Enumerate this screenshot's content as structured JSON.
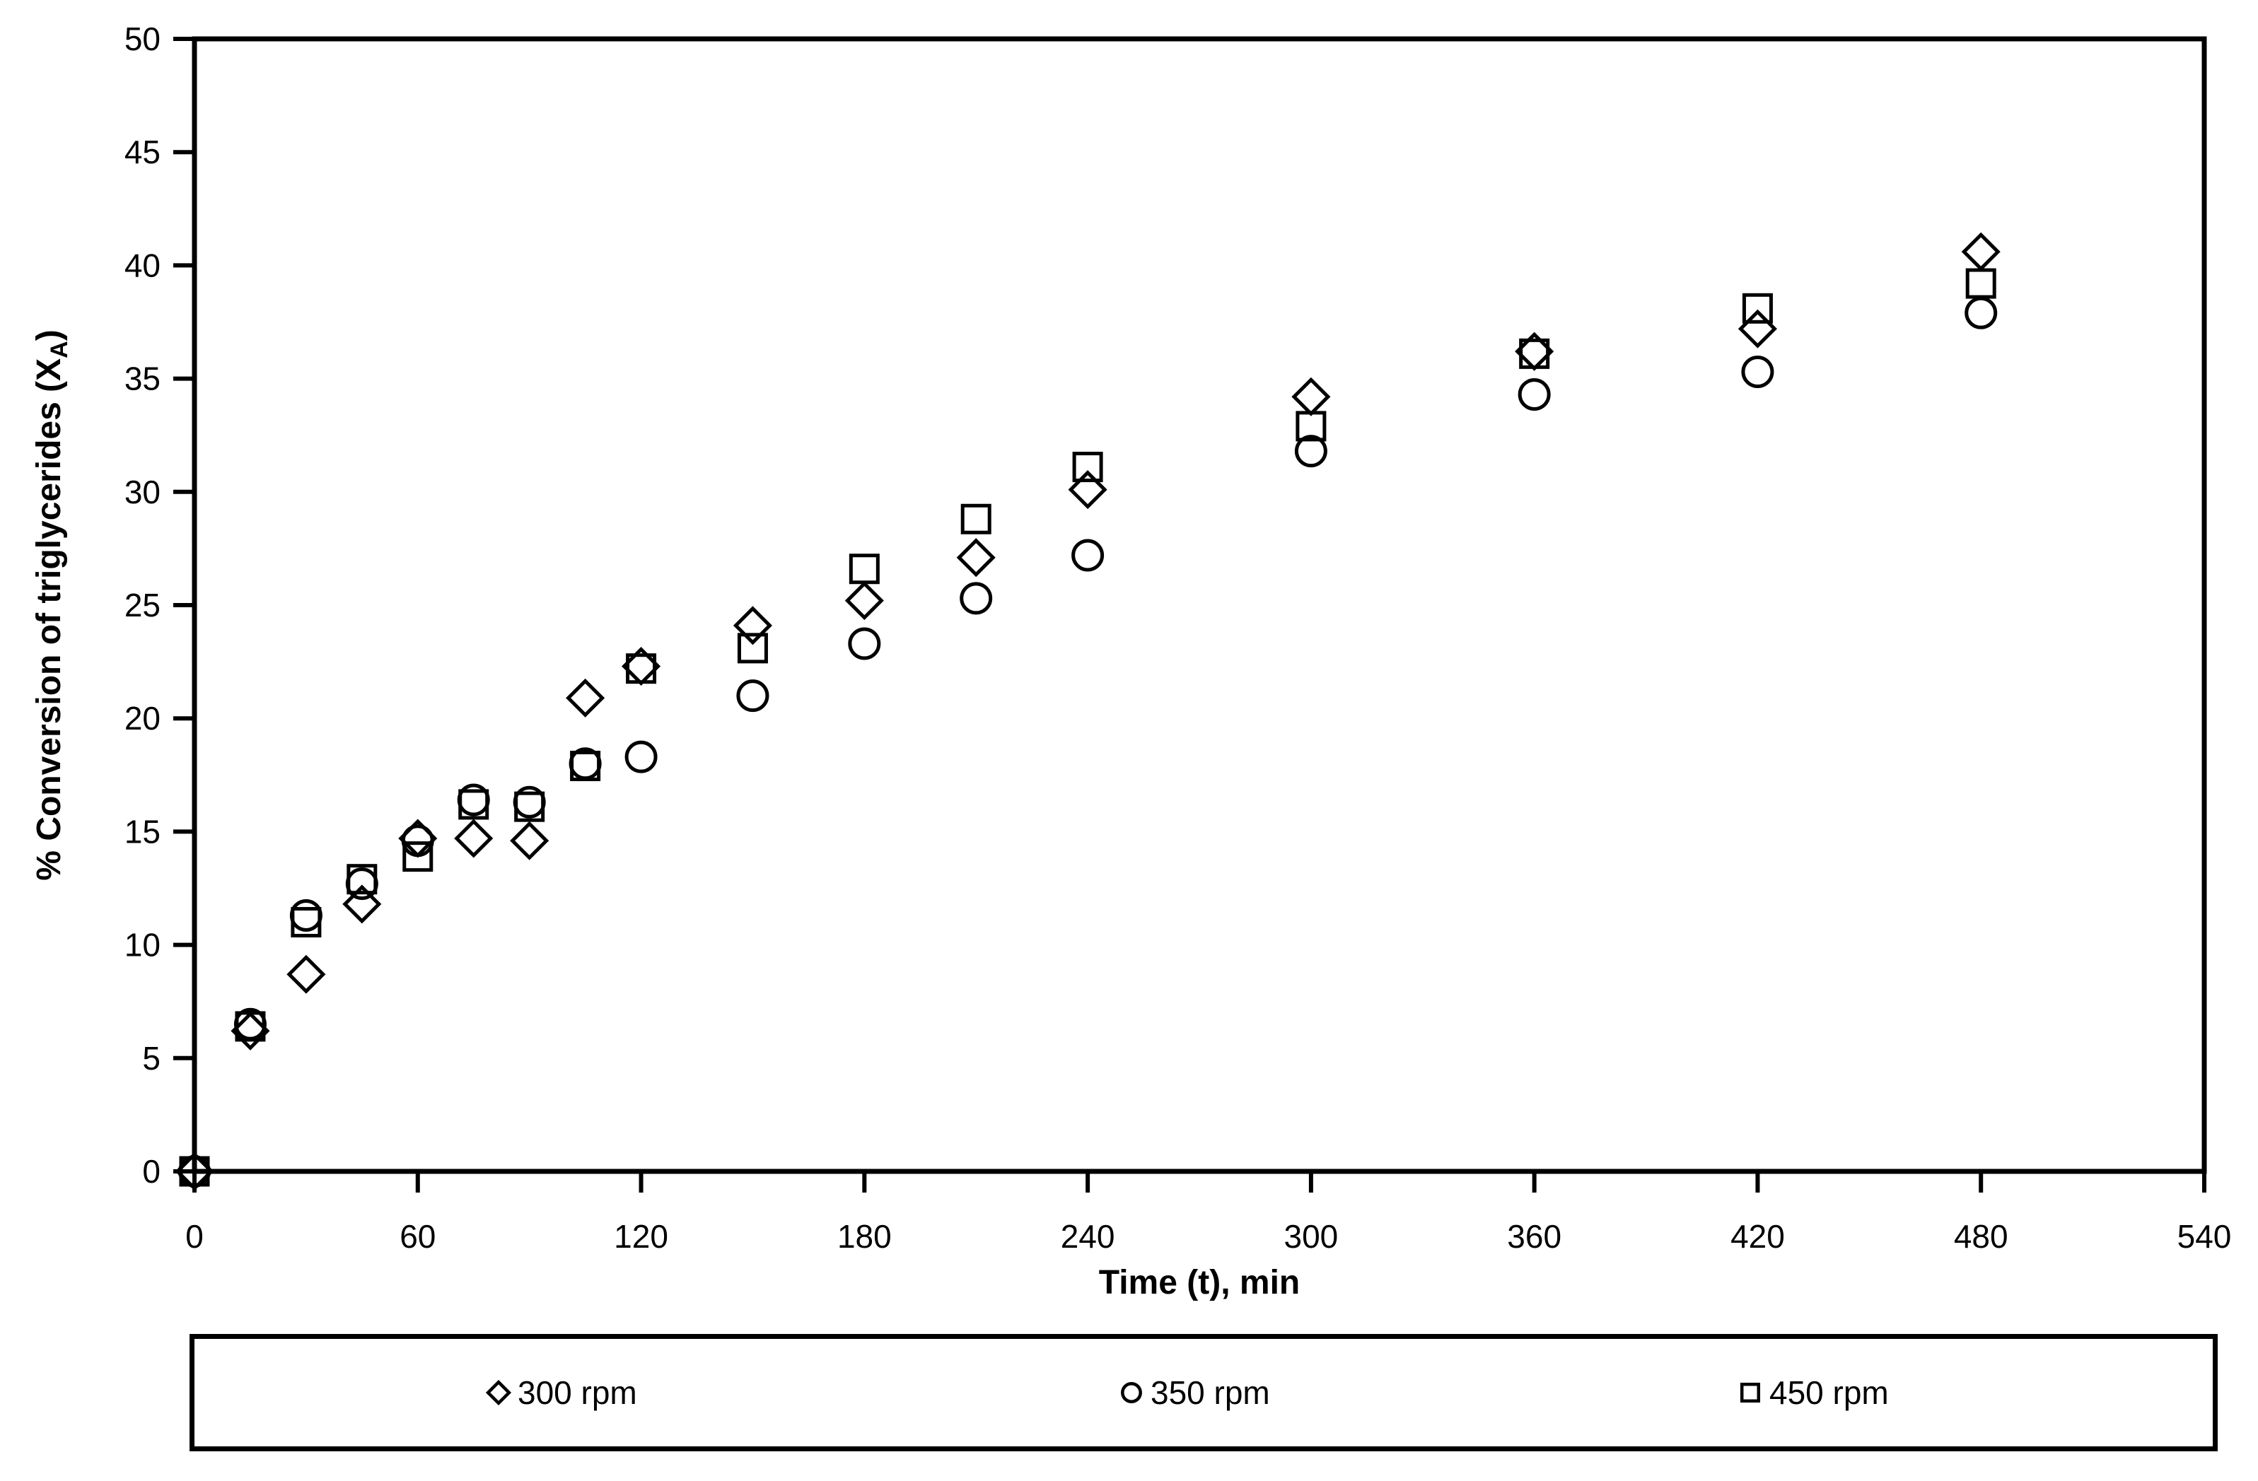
{
  "chart_data": {
    "type": "scatter",
    "title": "",
    "xlabel": "Time (t), min",
    "ylabel": "% Conversion of triglycerides (X_A)",
    "ylabel_main": "% Conversion of triglycerides (X",
    "ylabel_sub": "A",
    "ylabel_close": ")",
    "xlim": [
      0,
      540
    ],
    "ylim": [
      0,
      50
    ],
    "x_ticks": [
      0,
      60,
      120,
      180,
      240,
      300,
      360,
      420,
      480,
      540
    ],
    "y_ticks": [
      0,
      5,
      10,
      15,
      20,
      25,
      30,
      35,
      40,
      45,
      50
    ],
    "grid": "off",
    "legend_position": "bottom",
    "marker_fill": "none",
    "marker_color": "#000000",
    "x": [
      0,
      15,
      30,
      45,
      60,
      75,
      90,
      105,
      120,
      150,
      180,
      210,
      240,
      300,
      360,
      420,
      480
    ],
    "series": [
      {
        "name": "300 rpm",
        "marker": "diamond",
        "values": [
          0,
          6.2,
          8.7,
          11.8,
          14.7,
          14.7,
          14.6,
          20.9,
          22.3,
          24.1,
          25.2,
          27.1,
          30.1,
          34.2,
          36.2,
          37.2,
          40.6
        ]
      },
      {
        "name": "350 rpm",
        "marker": "circle",
        "values": [
          0,
          6.5,
          11.3,
          12.7,
          14.6,
          16.4,
          16.3,
          18.0,
          18.3,
          21.0,
          23.3,
          25.3,
          27.2,
          31.8,
          34.3,
          35.3,
          37.9
        ]
      },
      {
        "name": "450 rpm",
        "marker": "square",
        "values": [
          0,
          6.4,
          11.0,
          12.9,
          13.9,
          16.2,
          16.1,
          17.9,
          22.2,
          23.1,
          26.6,
          28.8,
          31.1,
          32.9,
          36.1,
          38.1,
          39.2
        ]
      }
    ]
  }
}
